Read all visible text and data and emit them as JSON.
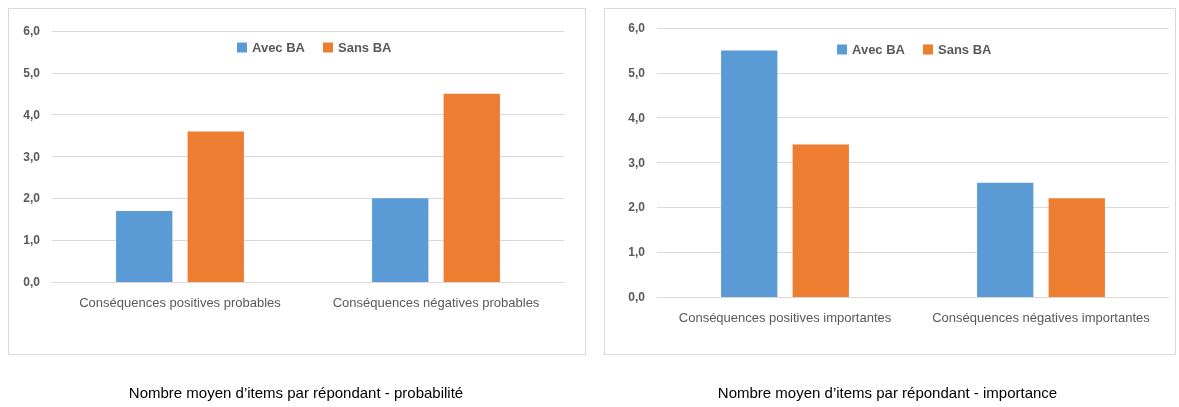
{
  "chart_data": [
    {
      "type": "bar",
      "title": "Nombre moyen d’items par répondant - probabilité",
      "categories": [
        "Conséquences positives probables",
        "Conséquences négatives probables"
      ],
      "series": [
        {
          "name": "Avec BA",
          "color": "#5b9bd5",
          "values": [
            1.7,
            2.0
          ]
        },
        {
          "name": "Sans BA",
          "color": "#ed7d31",
          "values": [
            3.6,
            4.5
          ]
        }
      ],
      "ylim": [
        0,
        6
      ],
      "yticks": [
        {
          "value": 0,
          "label": "0,0"
        },
        {
          "value": 1,
          "label": "1,0"
        },
        {
          "value": 2,
          "label": "2,0"
        },
        {
          "value": 3,
          "label": "3,0"
        },
        {
          "value": 4,
          "label": "4,0"
        },
        {
          "value": 5,
          "label": "5,0"
        },
        {
          "value": 6,
          "label": "6,0"
        }
      ],
      "grid": "y",
      "legend": "top"
    },
    {
      "type": "bar",
      "title": "Nombre moyen d’items par répondant - importance",
      "categories": [
        "Conséquences positives importantes",
        "Conséquences négatives importantes"
      ],
      "series": [
        {
          "name": "Avec BA",
          "color": "#5b9bd5",
          "values": [
            5.5,
            2.55
          ]
        },
        {
          "name": "Sans BA",
          "color": "#ed7d31",
          "values": [
            3.4,
            2.2
          ]
        }
      ],
      "ylim": [
        0,
        6
      ],
      "yticks": [
        {
          "value": 0,
          "label": "0,0"
        },
        {
          "value": 1,
          "label": "1,0"
        },
        {
          "value": 2,
          "label": "2,0"
        },
        {
          "value": 3,
          "label": "3,0"
        },
        {
          "value": 4,
          "label": "4,0"
        },
        {
          "value": 5,
          "label": "5,0"
        },
        {
          "value": 6,
          "label": "6,0"
        }
      ],
      "grid": "y",
      "legend": "top"
    }
  ]
}
